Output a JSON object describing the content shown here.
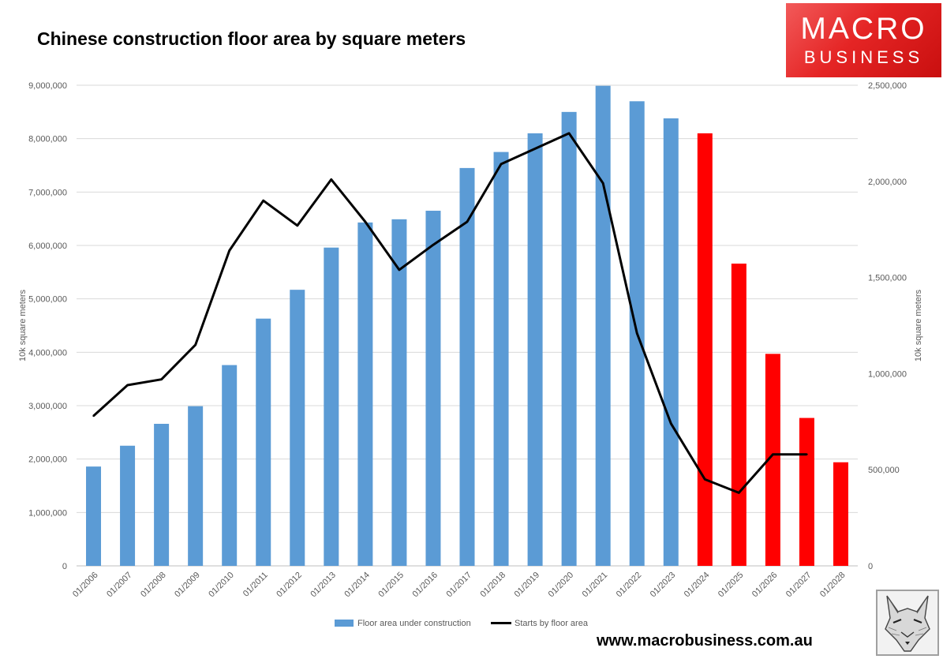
{
  "title": "Chinese construction floor area by square meters",
  "logo": {
    "line1": "MACRO",
    "line2": "BUSINESS"
  },
  "footer": {
    "url": "www.macrobusiness.com.au"
  },
  "colors": {
    "actual_bar": "#5b9bd5",
    "forecast_bar": "#ff0000",
    "line": "#000000",
    "gridline": "#d9d9d9",
    "axis_text": "#595959"
  },
  "chart_data": {
    "type": "bar",
    "categories": [
      "01/2006",
      "01/2007",
      "01/2008",
      "01/2009",
      "01/2010",
      "01/2011",
      "01/2012",
      "01/2013",
      "01/2014",
      "01/2015",
      "01/2016",
      "01/2017",
      "01/2018",
      "01/2019",
      "01/2020",
      "01/2021",
      "01/2022",
      "01/2023",
      "01/2024",
      "01/2025",
      "01/2026",
      "01/2027",
      "01/2028"
    ],
    "series": [
      {
        "name": "Floor area under construction",
        "type": "bar",
        "axis": "left",
        "values": [
          1860000,
          2250000,
          2660000,
          2990000,
          3760000,
          4630000,
          5170000,
          5960000,
          6430000,
          6490000,
          6650000,
          7450000,
          7750000,
          8100000,
          8500000,
          8990000,
          8700000,
          8380000,
          8100000,
          5660000,
          3970000,
          2770000,
          1940000
        ],
        "forecast_from_index": 18
      },
      {
        "name": "Starts by floor area",
        "type": "line",
        "axis": "right",
        "values": [
          780000,
          940000,
          970000,
          1150000,
          1640000,
          1900000,
          1770000,
          2010000,
          1790000,
          1540000,
          1670000,
          1790000,
          2090000,
          2170000,
          2250000,
          1990000,
          1210000,
          740000,
          450000,
          380000,
          580000,
          580000,
          null
        ]
      }
    ],
    "y_left": {
      "label": "10k square meters",
      "range": [
        0,
        9000000
      ],
      "ticks": [
        "0",
        "1,000,000",
        "2,000,000",
        "3,000,000",
        "4,000,000",
        "5,000,000",
        "6,000,000",
        "7,000,000",
        "8,000,000",
        "9,000,000"
      ]
    },
    "y_right": {
      "label": "10k square meters",
      "range": [
        0,
        2500000
      ],
      "ticks": [
        "0",
        "500,000",
        "1,000,000",
        "1,500,000",
        "2,000,000",
        "2,500,000"
      ]
    },
    "grid": true,
    "legend_position": "bottom"
  }
}
